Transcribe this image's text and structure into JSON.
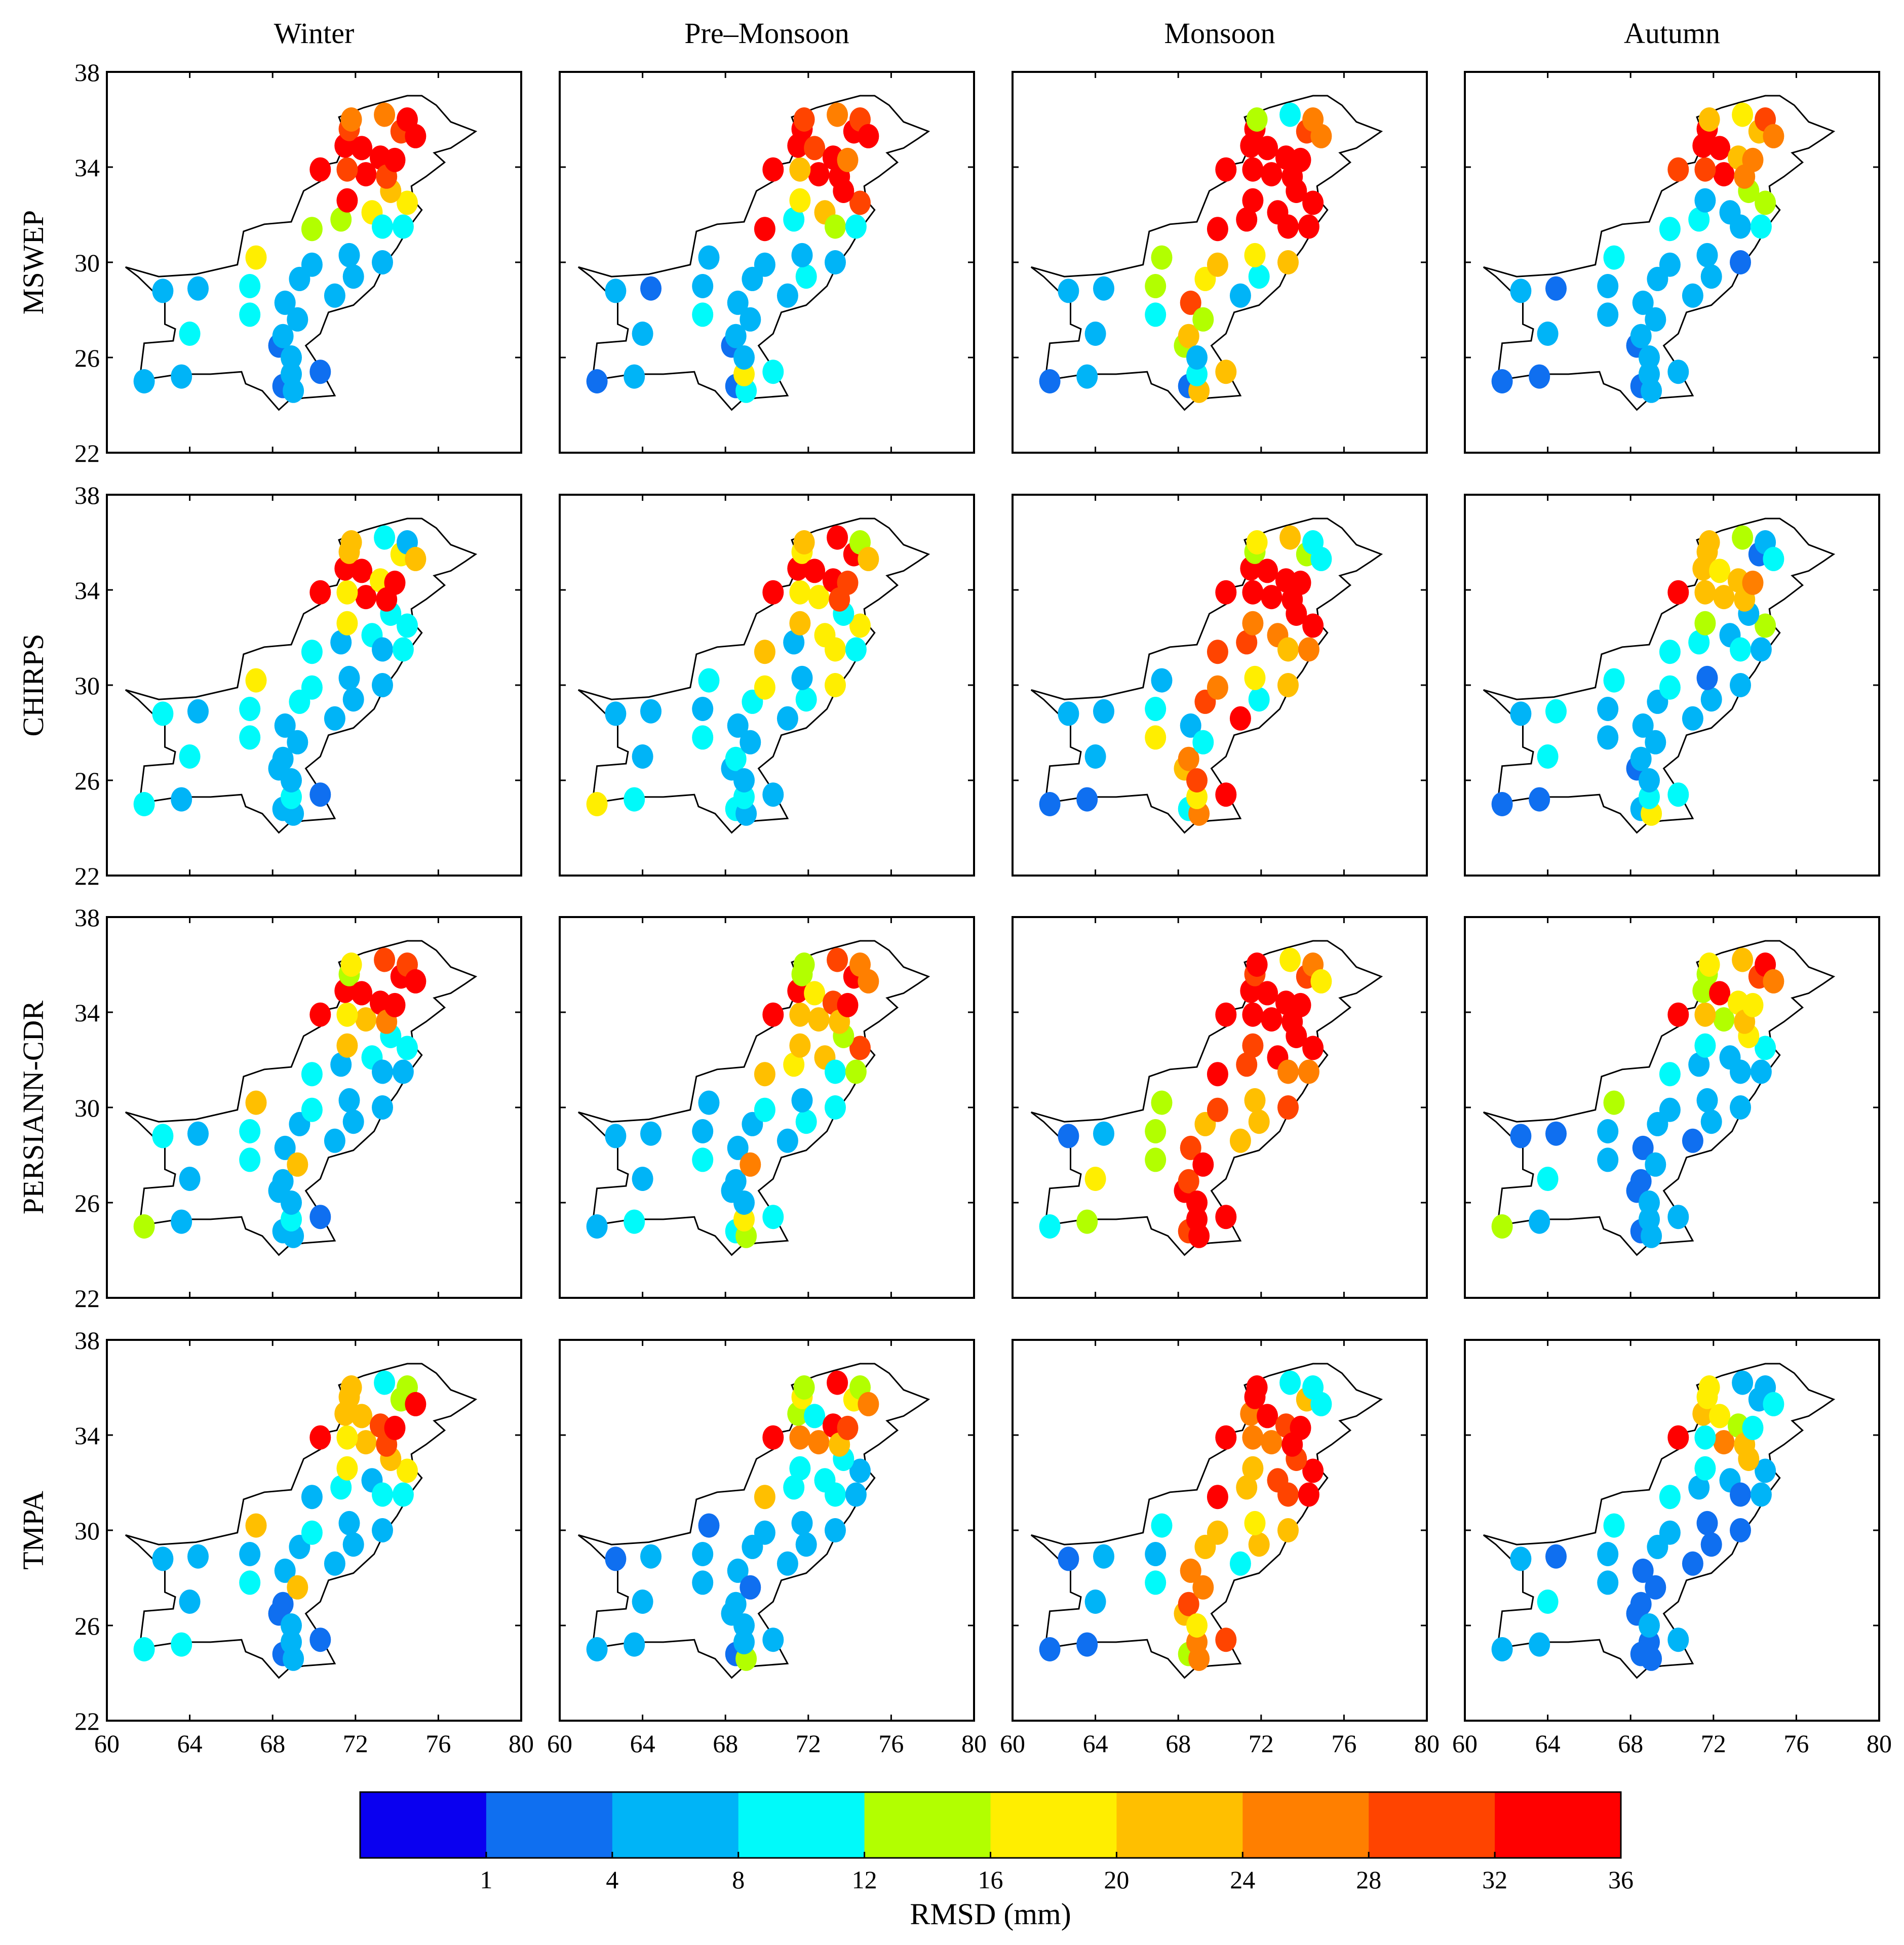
{
  "chart_data": {
    "type": "scatter",
    "title": "",
    "season_labels": [
      "Winter",
      "Pre–Monsoon",
      "Monsoon",
      "Autumn"
    ],
    "product_labels": [
      "MSWEP",
      "CHIRPS",
      "PERSIANN-CDR",
      "TMPA"
    ],
    "x_range": [
      60,
      80
    ],
    "y_range": [
      22,
      38
    ],
    "x_ticks": [
      "60",
      "64",
      "68",
      "72",
      "76",
      "80"
    ],
    "y_ticks": [
      "38",
      "34",
      "30",
      "26",
      "22"
    ],
    "x_tick_values": [
      60,
      64,
      68,
      72,
      76,
      80
    ],
    "y_tick_values": [
      38,
      34,
      30,
      26,
      22
    ],
    "colorbar": {
      "label": "RMSD (mm)",
      "tick_labels": [
        "1",
        "4",
        "8",
        "12",
        "16",
        "20",
        "24",
        "28",
        "32",
        "36"
      ],
      "colors": [
        "#0a00f0",
        "#0f6ff0",
        "#00b4f7",
        "#00fafa",
        "#b2ff00",
        "#ffee00",
        "#ffbf00",
        "#ff7f00",
        "#ff4400",
        "#ff0000"
      ]
    },
    "stations": [
      [
        61.8,
        25.0
      ],
      [
        63.6,
        25.2
      ],
      [
        62.7,
        28.8
      ],
      [
        64.4,
        28.9
      ],
      [
        64.0,
        27.0
      ],
      [
        66.9,
        27.8
      ],
      [
        66.9,
        29.0
      ],
      [
        67.2,
        30.2
      ],
      [
        68.5,
        24.8
      ],
      [
        69.0,
        24.6
      ],
      [
        68.9,
        25.3
      ],
      [
        70.3,
        25.4
      ],
      [
        68.3,
        26.5
      ],
      [
        68.5,
        26.9
      ],
      [
        68.6,
        28.3
      ],
      [
        69.2,
        27.6
      ],
      [
        69.3,
        29.3
      ],
      [
        69.9,
        29.9
      ],
      [
        71.0,
        28.6
      ],
      [
        71.9,
        29.4
      ],
      [
        71.7,
        30.3
      ],
      [
        69.9,
        31.4
      ],
      [
        71.3,
        31.8
      ],
      [
        72.8,
        32.1
      ],
      [
        73.3,
        31.5
      ],
      [
        73.3,
        30.0
      ],
      [
        74.3,
        31.5
      ],
      [
        74.5,
        32.5
      ],
      [
        73.7,
        33.0
      ],
      [
        72.5,
        33.7
      ],
      [
        71.6,
        33.9
      ],
      [
        70.3,
        33.9
      ],
      [
        71.5,
        34.9
      ],
      [
        71.7,
        35.6
      ],
      [
        72.3,
        34.8
      ],
      [
        73.2,
        34.4
      ],
      [
        73.5,
        33.6
      ],
      [
        73.9,
        34.3
      ],
      [
        73.4,
        36.2
      ],
      [
        74.2,
        35.5
      ],
      [
        74.5,
        36.0
      ],
      [
        74.9,
        35.3
      ],
      [
        71.6,
        32.6
      ],
      [
        71.8,
        36.0
      ],
      [
        68.9,
        26.0
      ]
    ],
    "values": [
      [
        [
          2,
          2,
          2,
          2,
          3,
          3,
          3,
          5,
          1,
          2,
          2,
          1,
          1,
          2,
          2,
          2,
          2,
          2,
          2,
          2,
          2,
          4,
          4,
          5,
          3,
          2,
          3,
          5,
          6,
          9,
          8,
          10,
          9,
          8,
          9,
          9,
          8,
          10,
          7,
          8,
          10,
          10,
          9,
          7,
          2
        ],
        [
          1,
          2,
          2,
          1,
          2,
          3,
          2,
          2,
          1,
          3,
          5,
          3,
          1,
          2,
          2,
          2,
          2,
          2,
          2,
          3,
          2,
          9,
          3,
          6,
          4,
          2,
          3,
          8,
          10,
          9,
          6,
          10,
          9,
          10,
          8,
          9,
          10,
          7,
          7,
          9,
          8,
          9,
          5,
          8,
          2
        ],
        [
          1,
          2,
          2,
          2,
          2,
          3,
          4,
          4,
          1,
          6,
          3,
          6,
          4,
          6,
          8,
          4,
          5,
          6,
          2,
          3,
          5,
          9,
          9,
          10,
          10,
          6,
          9,
          9,
          10,
          10,
          10,
          10,
          10,
          10,
          10,
          10,
          10,
          10,
          3,
          8,
          7,
          7,
          10,
          4,
          2
        ],
        [
          1,
          1,
          2,
          1,
          2,
          2,
          2,
          3,
          1,
          2,
          2,
          2,
          1,
          2,
          2,
          2,
          2,
          2,
          2,
          2,
          2,
          3,
          3,
          2,
          2,
          1,
          3,
          4,
          4,
          9,
          8,
          8,
          9,
          10,
          9,
          6,
          7,
          7,
          5,
          6,
          8,
          7,
          2,
          6,
          2
        ]
      ],
      [
        [
          3,
          2,
          3,
          2,
          3,
          3,
          3,
          5,
          2,
          2,
          3,
          1,
          2,
          2,
          2,
          2,
          3,
          3,
          2,
          2,
          2,
          3,
          2,
          3,
          2,
          2,
          3,
          3,
          3,
          9,
          5,
          10,
          9,
          6,
          9,
          5,
          9,
          10,
          3,
          5,
          2,
          6,
          5,
          6,
          2
        ],
        [
          5,
          3,
          2,
          2,
          2,
          3,
          2,
          3,
          3,
          2,
          3,
          2,
          2,
          3,
          2,
          2,
          3,
          5,
          2,
          3,
          2,
          6,
          2,
          5,
          5,
          5,
          3,
          5,
          3,
          5,
          5,
          10,
          9,
          5,
          10,
          9,
          8,
          8,
          10,
          10,
          4,
          6,
          6,
          6,
          2
        ],
        [
          1,
          1,
          2,
          2,
          2,
          5,
          3,
          2,
          3,
          7,
          5,
          10,
          6,
          7,
          2,
          3,
          8,
          7,
          10,
          3,
          5,
          8,
          8,
          7,
          6,
          6,
          7,
          10,
          10,
          10,
          10,
          10,
          9,
          4,
          10,
          10,
          10,
          10,
          6,
          4,
          3,
          3,
          7,
          5,
          8
        ],
        [
          1,
          1,
          2,
          3,
          3,
          2,
          2,
          3,
          2,
          5,
          3,
          3,
          1,
          2,
          2,
          2,
          2,
          3,
          2,
          2,
          1,
          3,
          3,
          2,
          3,
          2,
          2,
          4,
          2,
          6,
          6,
          9,
          6,
          6,
          5,
          6,
          6,
          7,
          4,
          1,
          2,
          3,
          4,
          6,
          2
        ]
      ],
      [
        [
          4,
          2,
          3,
          2,
          2,
          3,
          3,
          6,
          2,
          2,
          3,
          1,
          2,
          2,
          2,
          6,
          2,
          3,
          2,
          2,
          2,
          3,
          2,
          3,
          2,
          2,
          2,
          3,
          3,
          6,
          5,
          10,
          9,
          4,
          9,
          9,
          7,
          10,
          8,
          10,
          8,
          9,
          6,
          5,
          2
        ],
        [
          2,
          3,
          2,
          2,
          2,
          3,
          2,
          2,
          3,
          4,
          5,
          3,
          2,
          2,
          2,
          7,
          2,
          3,
          2,
          3,
          2,
          6,
          5,
          6,
          3,
          3,
          4,
          8,
          4,
          6,
          6,
          10,
          9,
          4,
          5,
          8,
          6,
          10,
          8,
          9,
          7,
          7,
          6,
          4,
          2
        ],
        [
          3,
          4,
          1,
          2,
          5,
          4,
          4,
          4,
          8,
          9,
          10,
          10,
          10,
          8,
          8,
          9,
          6,
          8,
          6,
          6,
          6,
          9,
          8,
          9,
          7,
          8,
          7,
          10,
          9,
          10,
          10,
          10,
          10,
          8,
          10,
          10,
          9,
          10,
          5,
          8,
          7,
          5,
          8,
          9,
          10
        ],
        [
          4,
          2,
          1,
          1,
          3,
          2,
          2,
          4,
          1,
          2,
          2,
          2,
          1,
          1,
          1,
          2,
          2,
          2,
          1,
          2,
          2,
          3,
          2,
          2,
          2,
          2,
          2,
          3,
          5,
          4,
          6,
          10,
          4,
          4,
          10,
          5,
          6,
          5,
          6,
          8,
          9,
          7,
          3,
          5,
          2
        ]
      ],
      [
        [
          3,
          3,
          2,
          2,
          2,
          3,
          2,
          6,
          1,
          2,
          2,
          1,
          1,
          1,
          2,
          6,
          2,
          3,
          2,
          2,
          2,
          2,
          3,
          2,
          3,
          2,
          3,
          5,
          6,
          6,
          5,
          10,
          6,
          6,
          6,
          8,
          8,
          10,
          3,
          4,
          4,
          9,
          5,
          6,
          2
        ],
        [
          2,
          2,
          1,
          2,
          2,
          2,
          2,
          1,
          1,
          4,
          2,
          2,
          2,
          2,
          2,
          1,
          2,
          2,
          2,
          2,
          2,
          6,
          3,
          3,
          3,
          2,
          2,
          2,
          3,
          7,
          7,
          10,
          4,
          5,
          3,
          9,
          6,
          8,
          9,
          5,
          4,
          7,
          3,
          4,
          2
        ],
        [
          1,
          1,
          1,
          2,
          2,
          3,
          2,
          3,
          4,
          7,
          7,
          8,
          6,
          8,
          7,
          7,
          6,
          6,
          3,
          6,
          5,
          10,
          6,
          8,
          8,
          6,
          9,
          10,
          8,
          7,
          7,
          10,
          7,
          10,
          10,
          8,
          10,
          10,
          3,
          6,
          3,
          3,
          6,
          9,
          5
        ],
        [
          2,
          2,
          2,
          1,
          3,
          2,
          2,
          3,
          1,
          1,
          1,
          2,
          1,
          1,
          1,
          1,
          2,
          2,
          1,
          1,
          1,
          3,
          2,
          2,
          1,
          1,
          2,
          2,
          6,
          7,
          3,
          10,
          6,
          5,
          5,
          4,
          6,
          3,
          2,
          2,
          2,
          3,
          3,
          5,
          2
        ]
      ]
    ]
  }
}
